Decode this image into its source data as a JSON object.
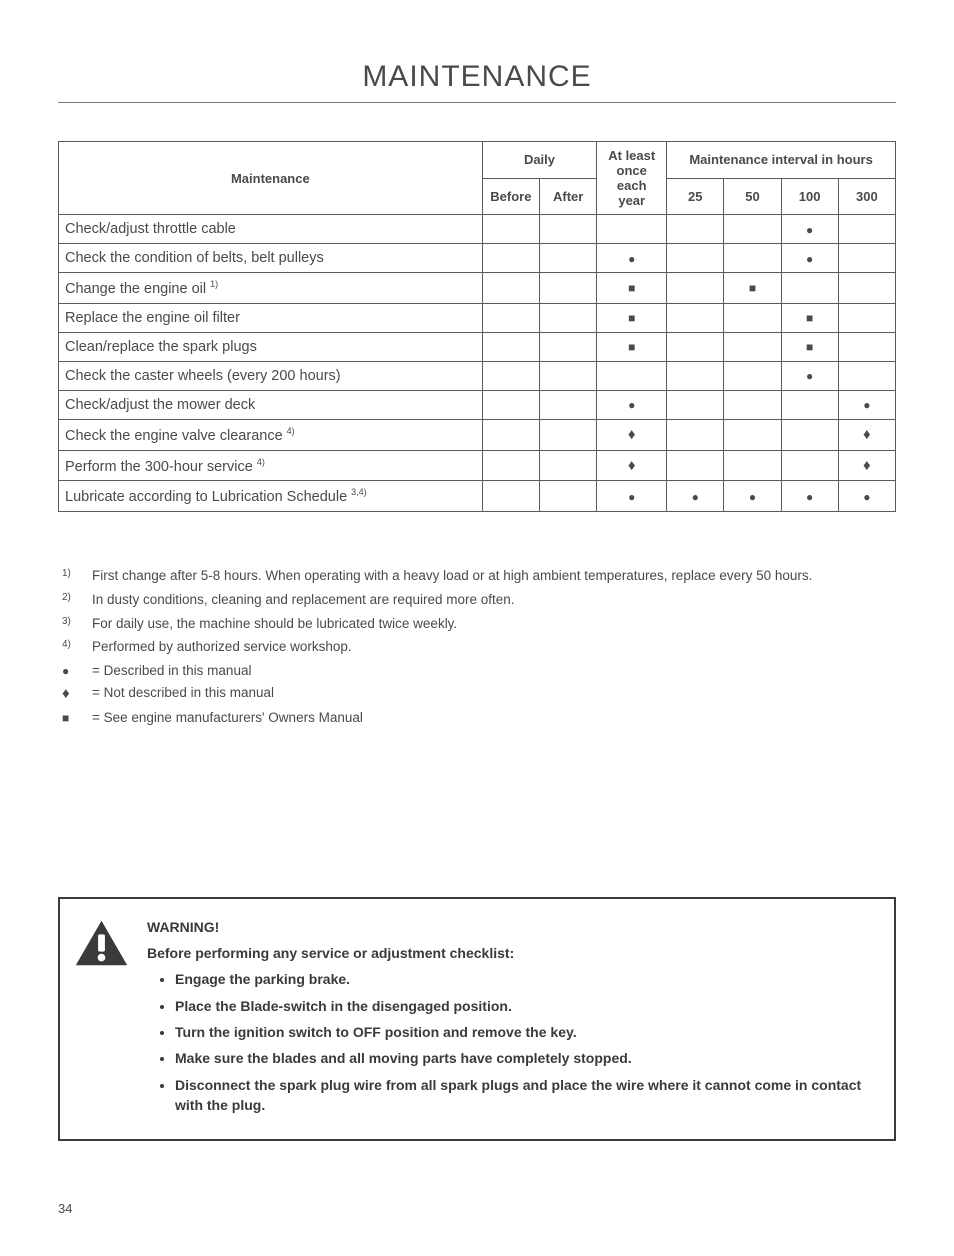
{
  "title": "MAINTENANCE",
  "table": {
    "headers": {
      "maintenance": "Maintenance",
      "daily": "Daily",
      "before": "Before",
      "after": "After",
      "year": "At least once each year",
      "interval": "Maintenance interval in hours",
      "h25": "25",
      "h50": "50",
      "h100": "100",
      "h300": "300"
    },
    "rows": [
      {
        "label": "Check/adjust throttle cable",
        "sup": "",
        "before": "",
        "after": "",
        "year": "",
        "h25": "",
        "h50": "",
        "h100": "circle",
        "h300": ""
      },
      {
        "label": "Check the condition of belts, belt pulleys",
        "sup": "",
        "before": "",
        "after": "",
        "year": "circle",
        "h25": "",
        "h50": "",
        "h100": "circle",
        "h300": ""
      },
      {
        "label": "Change the engine oil ",
        "sup": "1)",
        "before": "",
        "after": "",
        "year": "square",
        "h25": "",
        "h50": "square",
        "h100": "",
        "h300": ""
      },
      {
        "label": "Replace the engine oil filter",
        "sup": "",
        "before": "",
        "after": "",
        "year": "square",
        "h25": "",
        "h50": "",
        "h100": "square",
        "h300": ""
      },
      {
        "label": "Clean/replace the spark plugs",
        "sup": "",
        "before": "",
        "after": "",
        "year": "square",
        "h25": "",
        "h50": "",
        "h100": "square",
        "h300": ""
      },
      {
        "label": "Check the caster wheels (every 200 hours)",
        "sup": "",
        "before": "",
        "after": "",
        "year": "",
        "h25": "",
        "h50": "",
        "h100": "circle",
        "h300": ""
      },
      {
        "label": "Check/adjust the mower deck",
        "sup": "",
        "before": "",
        "after": "",
        "year": "circle",
        "h25": "",
        "h50": "",
        "h100": "",
        "h300": "circle"
      },
      {
        "label": "Check the engine valve clearance ",
        "sup": "4)",
        "before": "",
        "after": "",
        "year": "diamond",
        "h25": "",
        "h50": "",
        "h100": "",
        "h300": "diamond"
      },
      {
        "label": "Perform the 300-hour service ",
        "sup": "4)",
        "before": "",
        "after": "",
        "year": "diamond",
        "h25": "",
        "h50": "",
        "h100": "",
        "h300": "diamond"
      },
      {
        "label": "Lubricate according to Lubrication Schedule ",
        "sup": "3,4)",
        "before": "",
        "after": "",
        "year": "circle",
        "h25": "circle",
        "h50": "circle",
        "h100": "circle",
        "h300": "circle"
      }
    ]
  },
  "notes": [
    {
      "key_sup": "1)",
      "key_sym": "",
      "text": "First change after 5-8 hours. When operating with a heavy load or at high ambient temperatures, replace every 50 hours."
    },
    {
      "key_sup": "2)",
      "key_sym": "",
      "text": "In dusty conditions, cleaning and replacement are required more often."
    },
    {
      "key_sup": "3)",
      "key_sym": "",
      "text": "For daily use, the machine should be lubricated twice weekly."
    },
    {
      "key_sup": "4)",
      "key_sym": "",
      "text": "Performed by authorized service workshop."
    },
    {
      "key_sup": "",
      "key_sym": "circle",
      "text": "= Described in this manual"
    },
    {
      "key_sup": "",
      "key_sym": "diamond",
      "text": "= Not described in this manual"
    },
    {
      "key_sup": "",
      "key_sym": "square",
      "text": "= See engine manufacturers' Owners Manual"
    }
  ],
  "warning": {
    "heading": "WARNING!",
    "sub": "Before performing any service or adjustment checklist:",
    "items": [
      "Engage the parking brake.",
      "Place the Blade-switch in the disengaged position.",
      "Turn the ignition switch to OFF position and remove the key.",
      "Make sure the blades and all moving parts have completely stopped.",
      "Disconnect the spark plug wire from all spark plugs and place the wire where it cannot come in contact with the plug."
    ]
  },
  "page_number": "34",
  "colors": {
    "text": "#4a4a4a",
    "border": "#5a5a5a",
    "background": "#ffffff"
  }
}
